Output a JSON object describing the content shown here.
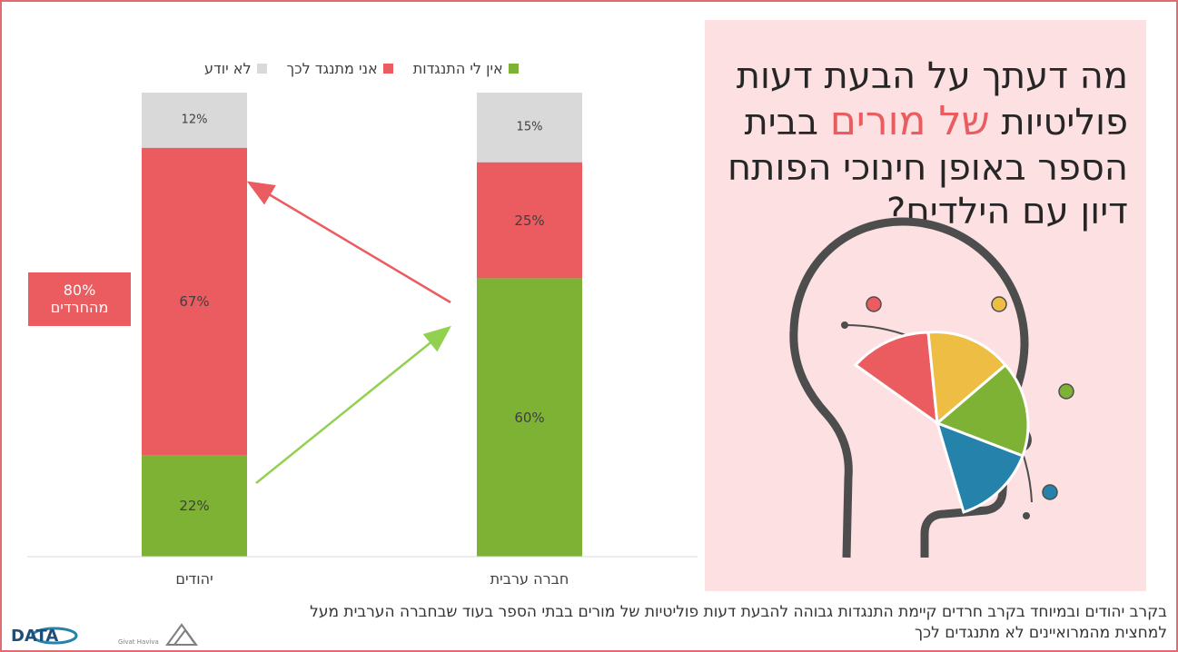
{
  "colors": {
    "green": "#7eb234",
    "red": "#ea5c5f",
    "gray": "#d9d9d9",
    "panel_bg": "#fde0e2",
    "frame": "#e06b70",
    "text": "#404040",
    "yellow": "#eebd44",
    "blue": "#2582aa",
    "head": "#4d4d4d",
    "arrow_green": "#92d050"
  },
  "title": {
    "line1": "מה דעתך על הבעת דעות",
    "line2_pre": "פוליטיות",
    "line2_highlight": "של מורים",
    "line2_post": "בבית",
    "line3": "הספר באופן חינוכי הפותח",
    "line4": "דיון עם הילדים?"
  },
  "callout": {
    "line1": "80%",
    "line2": "מהחרדים"
  },
  "footer": {
    "line1": "בקרב יהודים ובמיוחד בקרב חרדים קיימת התנגדות גבוהה להבעת דעות פוליטיות של מורים בבתי הספר בעוד שבחברה הערבית מעל",
    "line2": "למחצית מהמרואיינים לא מתנגדים לכך"
  },
  "logos": {
    "data_logo": "DATA",
    "givat_haviva": "Givat Haviva"
  },
  "chart_data": {
    "type": "bar",
    "stacked": true,
    "categories": [
      "יהודים",
      "חברה ערבית"
    ],
    "series": [
      {
        "name": "אין לי התנגדות",
        "values": [
          22,
          60
        ]
      },
      {
        "name": "אני מתנגד לכך",
        "values": [
          67,
          25
        ]
      },
      {
        "name": "לא יודע",
        "values": [
          12,
          15
        ]
      }
    ],
    "labels": [
      [
        "22%",
        "67%",
        "12%"
      ],
      [
        "60%",
        "25%",
        "15%"
      ]
    ],
    "legend_position": "top",
    "grid": false,
    "ylim": [
      0,
      100
    ]
  }
}
